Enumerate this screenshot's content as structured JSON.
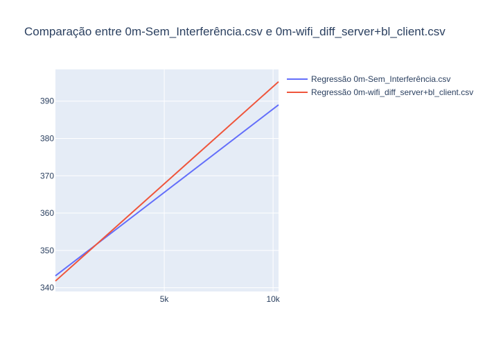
{
  "chart_data": {
    "type": "line",
    "title": "Comparação entre 0m-Sem_Interferência.csv e 0m-wifi_diff_server+bl_client.csv",
    "xlabel": "",
    "ylabel": "",
    "xlim": [
      0,
      10250
    ],
    "ylim": [
      339,
      398.5
    ],
    "xticks": [
      5000,
      10000
    ],
    "xtick_labels": [
      "5k",
      "10k"
    ],
    "yticks": [
      340,
      350,
      360,
      370,
      380,
      390
    ],
    "ytick_labels": [
      "340",
      "350",
      "360",
      "370",
      "380",
      "390"
    ],
    "grid": true,
    "legend_position": "top-right outside",
    "series": [
      {
        "name": "Regressão 0m-Sem_Interferência.csv",
        "color": "#636efa",
        "x": [
          0,
          10250
        ],
        "y": [
          343.2,
          389.0
        ]
      },
      {
        "name": "Regressão 0m-wifi_diff_server+bl_client.csv",
        "color": "#ef553b",
        "x": [
          0,
          10250
        ],
        "y": [
          341.8,
          395.2
        ]
      }
    ]
  }
}
